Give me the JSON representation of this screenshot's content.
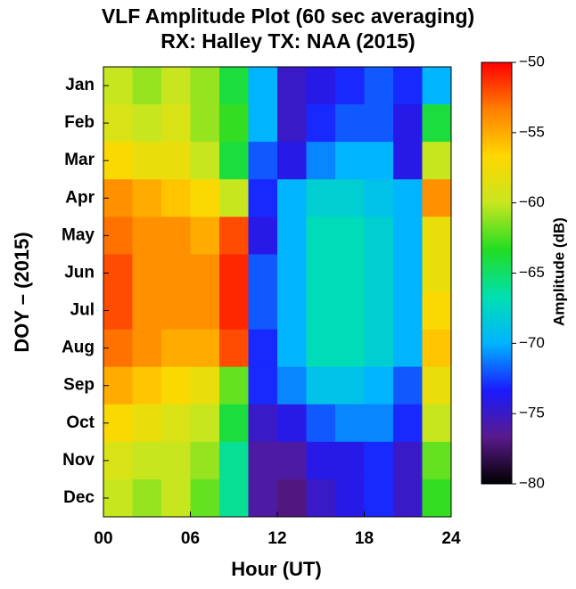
{
  "chart_data": {
    "type": "heatmap",
    "title": "VLF Amplitude Plot (60 sec averaging)",
    "subtitle": "RX: Halley TX: NAA (2015)",
    "x_label": "Hour (UT)",
    "y_label": "DOY – (2015)",
    "colorbar_label": "Amplitude (dB)",
    "categories": [
      "Jan",
      "Feb",
      "Mar",
      "Apr",
      "May",
      "Jun",
      "Jul",
      "Aug",
      "Sep",
      "Oct",
      "Nov",
      "Dec"
    ],
    "xbins": [
      0,
      2,
      4,
      6,
      8,
      10,
      12,
      14,
      16,
      18,
      20,
      22,
      24
    ],
    "xlim": [
      0,
      24
    ],
    "xticks": [
      {
        "value": 0,
        "label": "00"
      },
      {
        "value": 6,
        "label": "06"
      },
      12,
      18,
      24
    ],
    "zlim": [
      -80,
      -50
    ],
    "zticks": [
      {
        "value": -80,
        "label": "−80"
      },
      {
        "value": -75,
        "label": "−75"
      },
      {
        "value": -70,
        "label": "−70"
      },
      {
        "value": -65,
        "label": "−65"
      },
      {
        "value": -60,
        "label": "−60"
      },
      {
        "value": -55,
        "label": "−55"
      },
      {
        "value": -50,
        "label": "−50"
      }
    ],
    "colormap": [
      "#000000",
      "#5a1a8c",
      "#1a1aff",
      "#00b4ff",
      "#00e0b0",
      "#22dd22",
      "#c8e61e",
      "#ffd700",
      "#ff7f00",
      "#ff0000"
    ],
    "z": [
      [
        -60,
        -61,
        -60,
        -61,
        -64,
        -70,
        -75,
        -74,
        -73,
        -72,
        -73,
        -70
      ],
      [
        -59,
        -60,
        -59,
        -61,
        -63,
        -70,
        -75,
        -73,
        -72,
        -72,
        -74,
        -64
      ],
      [
        -57,
        -58,
        -58,
        -60,
        -64,
        -72,
        -74,
        -71,
        -70,
        -70,
        -74,
        -60
      ],
      [
        -54,
        -55,
        -56,
        -57,
        -60,
        -73,
        -70,
        -68,
        -68,
        -69,
        -70,
        -54
      ],
      [
        -53,
        -54,
        -54,
        -55,
        -52,
        -74,
        -70,
        -67,
        -67,
        -68,
        -70,
        -58
      ],
      [
        -52,
        -54,
        -54,
        -54,
        -51,
        -72,
        -70,
        -67,
        -67,
        -68,
        -70,
        -58
      ],
      [
        -52,
        -54,
        -54,
        -54,
        -51,
        -72,
        -70,
        -67,
        -67,
        -68,
        -70,
        -57
      ],
      [
        -53,
        -54,
        -55,
        -55,
        -52,
        -73,
        -70,
        -67,
        -67,
        -68,
        -70,
        -56
      ],
      [
        -55,
        -56,
        -57,
        -58,
        -62,
        -73,
        -71,
        -69,
        -69,
        -70,
        -72,
        -58
      ],
      [
        -57,
        -58,
        -59,
        -60,
        -64,
        -75,
        -74,
        -72,
        -71,
        -71,
        -73,
        -60
      ],
      [
        -59,
        -60,
        -60,
        -61,
        -66,
        -76,
        -76,
        -74,
        -74,
        -73,
        -75,
        -62
      ],
      [
        -60,
        -61,
        -60,
        -62,
        -66,
        -76,
        -77,
        -75,
        -74,
        -73,
        -75,
        -63
      ]
    ]
  }
}
